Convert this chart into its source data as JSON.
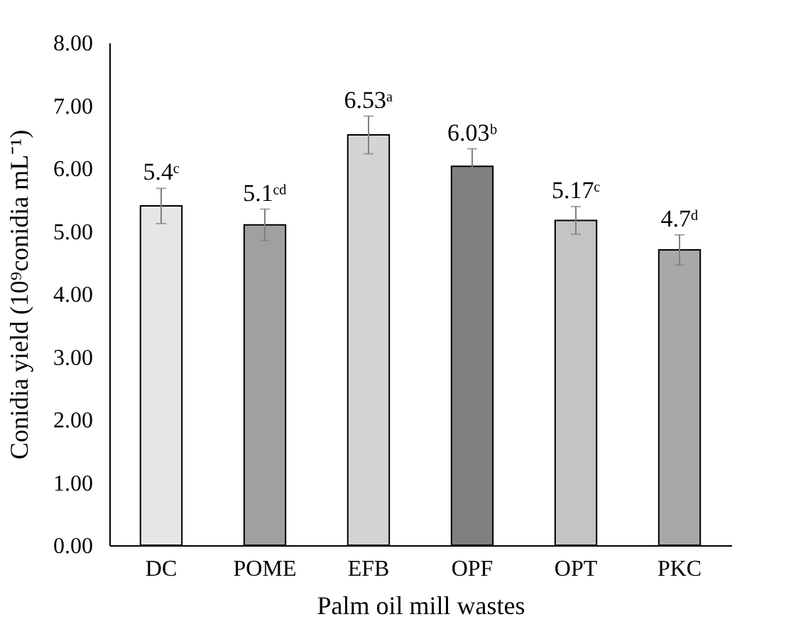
{
  "chart_data": {
    "type": "bar",
    "xlabel": "Palm oil mill wastes",
    "ylabel": "Conidia yield (10⁹conidia  mL⁻¹)",
    "categories": [
      "DC",
      "POME",
      "EFB",
      "OPF",
      "OPT",
      "PKC"
    ],
    "values": [
      5.4,
      5.1,
      6.53,
      6.03,
      5.17,
      4.7
    ],
    "value_labels": [
      "5.4ᶜ",
      "5.1ᶜᵈ",
      "6.53ᵃ",
      "6.03ᵇ",
      "5.17ᶜ",
      "4.7ᵈ"
    ],
    "errors": [
      0.28,
      0.25,
      0.3,
      0.28,
      0.22,
      0.24
    ],
    "colors": [
      "#e6e6e6",
      "#a0a0a0",
      "#d4d4d4",
      "#808080",
      "#c4c4c4",
      "#a8a8a8"
    ],
    "ylim": [
      0,
      8
    ],
    "yticks": [
      {
        "value": 0,
        "label": "0.00"
      },
      {
        "value": 1,
        "label": "1.00"
      },
      {
        "value": 2,
        "label": "2.00"
      },
      {
        "value": 3,
        "label": "3.00"
      },
      {
        "value": 4,
        "label": "4.00"
      },
      {
        "value": 5,
        "label": "5.00"
      },
      {
        "value": 6,
        "label": "6.00"
      },
      {
        "value": 7,
        "label": "7.00"
      },
      {
        "value": 8,
        "label": "8.00"
      }
    ],
    "grid": false
  }
}
